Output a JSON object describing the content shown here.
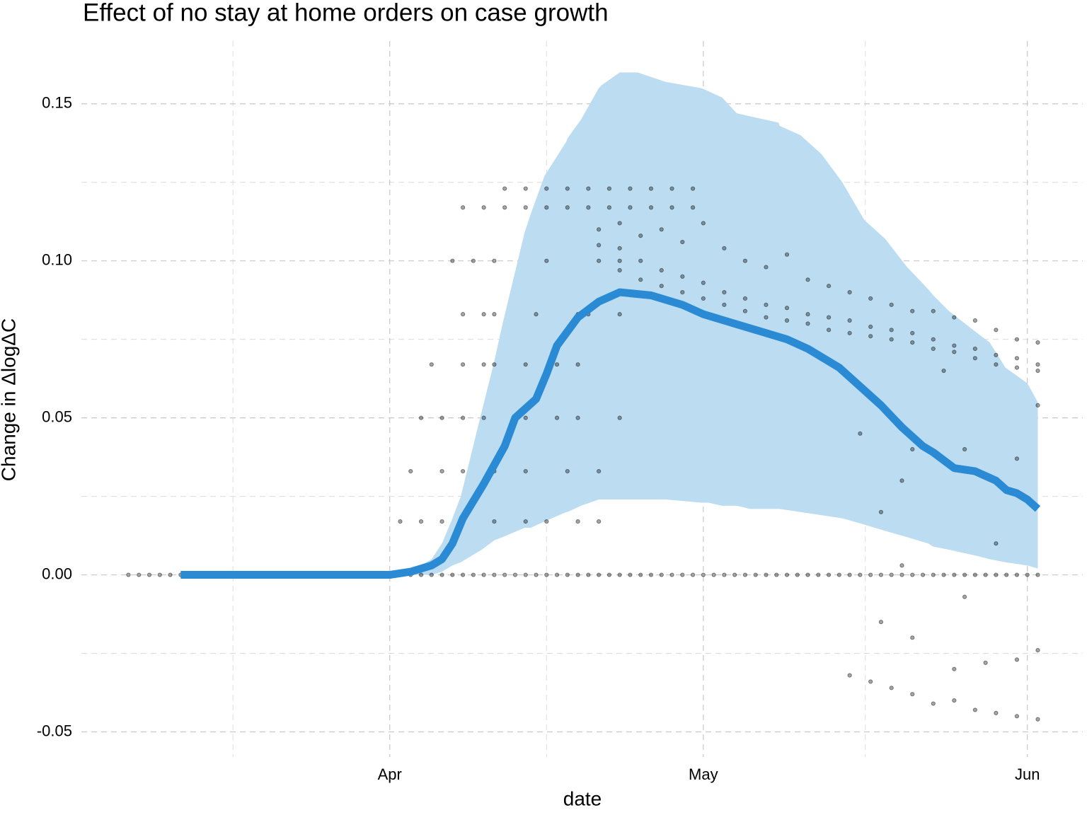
{
  "chart_data": {
    "type": "line",
    "title": "Effect of no stay at home orders on case growth",
    "x_label": "date",
    "y_label": "Change in ΔlogΔC",
    "xlim": [
      -29.5,
      66.3
    ],
    "xticks": [
      {
        "value": 0,
        "label": "Apr"
      },
      {
        "value": 30,
        "label": "May"
      },
      {
        "value": 61,
        "label": "Jun"
      }
    ],
    "ylim": [
      -0.058,
      0.17
    ],
    "yticks": [
      -0.05,
      {
        "value": 0,
        "label": "0.00"
      },
      0.05,
      {
        "value": 0.1,
        "label": "0.10"
      },
      0.15
    ],
    "grid": true,
    "band": {
      "color": "#bcdcf1",
      "x": [
        2,
        4,
        5,
        6,
        6.8,
        8.8,
        10,
        10.8,
        12.9,
        13.5,
        14.8,
        16.9,
        17,
        18.3,
        20,
        20.3,
        22,
        23.7,
        26.4,
        29.8,
        30.5,
        31.8,
        33.2,
        34.5,
        37.2,
        37.3,
        39.3,
        41.3,
        43.3,
        45.4,
        47.4,
        49.5,
        51.5,
        52,
        53.5,
        56.2,
        57.4,
        58.9,
        61,
        62
      ],
      "lower": [
        0,
        0,
        0.001,
        0.003,
        0.004,
        0.008,
        0.011,
        0.012,
        0.015,
        0.015,
        0.017,
        0.02,
        0.02,
        0.022,
        0.024,
        0.024,
        0.024,
        0.024,
        0.024,
        0.023,
        0.023,
        0.022,
        0.022,
        0.021,
        0.021,
        0.021,
        0.02,
        0.019,
        0.018,
        0.016,
        0.014,
        0.012,
        0.01,
        0.009,
        0.008,
        0.006,
        0.005,
        0.004,
        0.003,
        0.002
      ],
      "upper": [
        0.001,
        0.005,
        0.01,
        0.018,
        0.025,
        0.052,
        0.068,
        0.08,
        0.109,
        0.115,
        0.127,
        0.138,
        0.139,
        0.145,
        0.155,
        0.156,
        0.16,
        0.16,
        0.157,
        0.155,
        0.154,
        0.152,
        0.147,
        0.146,
        0.144,
        0.143,
        0.14,
        0.134,
        0.125,
        0.113,
        0.107,
        0.098,
        0.091,
        0.089,
        0.084,
        0.077,
        0.074,
        0.066,
        0.061,
        0.055
      ]
    },
    "line": {
      "color": "#2a8bd4",
      "x": [
        -20,
        -15,
        -10,
        -5,
        0,
        2,
        4,
        5,
        6,
        7,
        9,
        11,
        12,
        14,
        15,
        16,
        18,
        20,
        22,
        25,
        28,
        30,
        33,
        36,
        38,
        40,
        43,
        45,
        47,
        49,
        51,
        52,
        54,
        56,
        58,
        59,
        60,
        61,
        62
      ],
      "values": [
        0,
        0,
        0,
        0,
        0,
        0.001,
        0.003,
        0.005,
        0.01,
        0.018,
        0.029,
        0.041,
        0.05,
        0.056,
        0.064,
        0.073,
        0.082,
        0.087,
        0.09,
        0.089,
        0.086,
        0.083,
        0.08,
        0.077,
        0.075,
        0.072,
        0.066,
        0.06,
        0.054,
        0.047,
        0.041,
        0.039,
        0.034,
        0.033,
        0.03,
        0.027,
        0.026,
        0.024,
        0.021
      ]
    },
    "points": [
      {
        "color": "#000000",
        "x": [
          -25,
          -24,
          -23,
          -22,
          -21,
          -20,
          2,
          3,
          4,
          5,
          6,
          7,
          8,
          9,
          10,
          11,
          12,
          13,
          14,
          15,
          16,
          17,
          18,
          19,
          20,
          21,
          22,
          23,
          24,
          25,
          26,
          27,
          28,
          29,
          30,
          31,
          32,
          33,
          34,
          35,
          36,
          37,
          38,
          39,
          40,
          41,
          42,
          43,
          44,
          45,
          46,
          47,
          48,
          49,
          50,
          51,
          52,
          53,
          54,
          55,
          56,
          57,
          58,
          59,
          60,
          61,
          62
        ],
        "values": [
          0,
          0,
          0,
          0,
          0,
          0,
          0,
          0,
          0,
          0,
          0,
          0,
          0,
          0,
          0,
          0,
          0,
          0,
          0,
          0,
          0,
          0,
          0,
          0,
          0,
          0,
          0,
          0,
          0,
          0,
          0,
          0,
          0,
          0,
          0,
          0,
          0,
          0,
          0,
          0,
          0,
          0,
          0,
          0,
          0,
          0,
          0,
          0,
          0,
          0,
          0,
          0,
          0,
          0,
          0,
          0,
          0,
          0,
          0,
          0,
          0,
          0,
          0,
          0,
          0,
          0,
          0
        ]
      },
      {
        "color": "#000000",
        "x": [
          7,
          9,
          11,
          13,
          15,
          17,
          19,
          21,
          23,
          25,
          27,
          29,
          11,
          13,
          15,
          17,
          19,
          21,
          23,
          25,
          27,
          29,
          6,
          8,
          10,
          15,
          22,
          7,
          9,
          10,
          14,
          18,
          19,
          22,
          4,
          7,
          9,
          10,
          13,
          16,
          18,
          3,
          5,
          7,
          9,
          13,
          16,
          18,
          22,
          2,
          5,
          7,
          10,
          13,
          17,
          20,
          1,
          3,
          5,
          10,
          13,
          15,
          18,
          20
        ],
        "values": [
          0.117,
          0.117,
          0.117,
          0.117,
          0.117,
          0.117,
          0.117,
          0.117,
          0.117,
          0.117,
          0.117,
          0.117,
          0.123,
          0.123,
          0.123,
          0.123,
          0.123,
          0.123,
          0.123,
          0.123,
          0.123,
          0.123,
          0.1,
          0.1,
          0.1,
          0.1,
          0.1,
          0.083,
          0.083,
          0.083,
          0.083,
          0.083,
          0.083,
          0.083,
          0.067,
          0.067,
          0.067,
          0.067,
          0.067,
          0.067,
          0.067,
          0.05,
          0.05,
          0.05,
          0.05,
          0.05,
          0.05,
          0.05,
          0.05,
          0.033,
          0.033,
          0.033,
          0.033,
          0.033,
          0.033,
          0.033,
          0.017,
          0.017,
          0.017,
          0.017,
          0.017,
          0.017,
          0.017,
          0.017
        ]
      },
      {
        "color": "#000000",
        "x": [
          20,
          20,
          20,
          22,
          22,
          22,
          24,
          24,
          24,
          26,
          26,
          26,
          28,
          28,
          28,
          30,
          30,
          30,
          32,
          32,
          32,
          34,
          34,
          34,
          36,
          36,
          36,
          38,
          38,
          38,
          40,
          40,
          40,
          42,
          42,
          42,
          44,
          44,
          44,
          46,
          46,
          46,
          48,
          48,
          48,
          50,
          50,
          50,
          52,
          52,
          52,
          54,
          54,
          54,
          56,
          56,
          56,
          58,
          58,
          58,
          60,
          60,
          60,
          62,
          62,
          62
        ],
        "values": [
          0.11,
          0.105,
          0.1,
          0.112,
          0.104,
          0.097,
          0.108,
          0.1,
          0.094,
          0.11,
          0.097,
          0.092,
          0.106,
          0.095,
          0.09,
          0.112,
          0.093,
          0.088,
          0.104,
          0.09,
          0.086,
          0.1,
          0.088,
          0.084,
          0.098,
          0.086,
          0.082,
          0.102,
          0.085,
          0.081,
          0.094,
          0.083,
          0.08,
          0.092,
          0.082,
          0.078,
          0.09,
          0.081,
          0.077,
          0.088,
          0.079,
          0.076,
          0.086,
          0.078,
          0.075,
          0.084,
          0.077,
          0.074,
          0.084,
          0.075,
          0.072,
          0.082,
          0.073,
          0.071,
          0.081,
          0.072,
          0.069,
          0.078,
          0.07,
          0.067,
          0.075,
          0.069,
          0.066,
          0.074,
          0.067,
          0.065
        ]
      },
      {
        "color": "#000000",
        "x": [
          45,
          47,
          49,
          50,
          53,
          55,
          58,
          60,
          62,
          44,
          46,
          48,
          50,
          52,
          54,
          56,
          58,
          60,
          62,
          47,
          50,
          54,
          57,
          60,
          62,
          49,
          55
        ],
        "values": [
          0.045,
          0.02,
          0.03,
          0.04,
          0.065,
          0.04,
          0.01,
          0.037,
          0.054,
          -0.032,
          -0.034,
          -0.036,
          -0.038,
          -0.041,
          -0.04,
          -0.043,
          -0.044,
          -0.045,
          -0.046,
          -0.015,
          -0.02,
          -0.03,
          -0.028,
          -0.027,
          -0.024,
          0.003,
          -0.007
        ]
      }
    ]
  }
}
